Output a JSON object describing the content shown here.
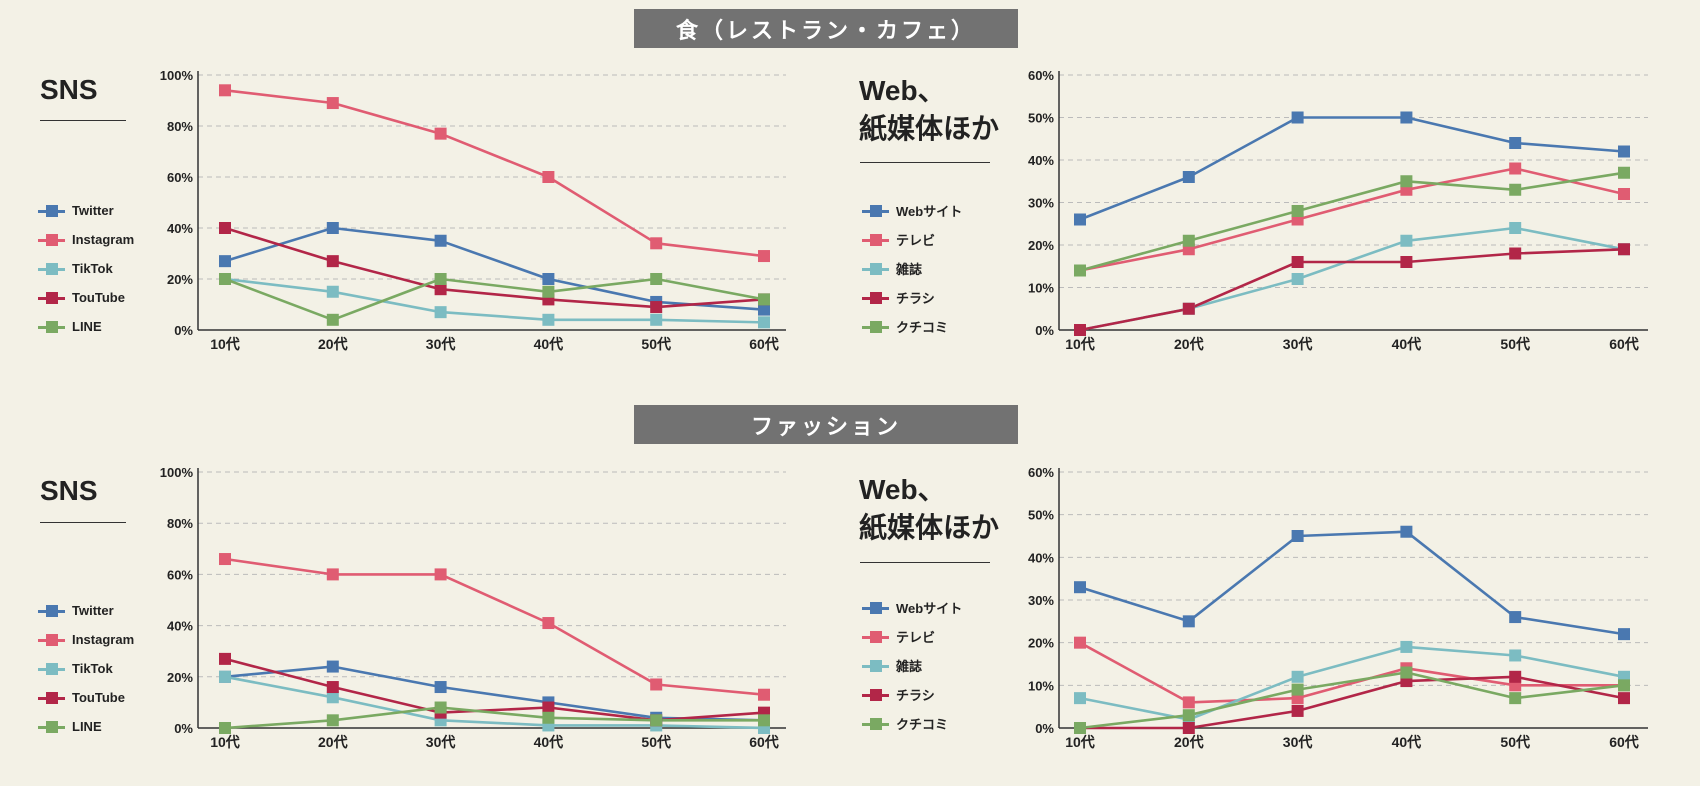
{
  "sections": [
    {
      "title": "食（レストラン・カフェ）"
    },
    {
      "title": "ファッション"
    }
  ],
  "sns_title": "SNS",
  "web_title_line1": "Web、",
  "web_title_line2": "紙媒体ほか",
  "colors": {
    "blue": "#4a78b0",
    "pink": "#e05c72",
    "teal": "#7cbcc2",
    "crimson": "#b22648",
    "green": "#7aa962",
    "grid": "#bbbbbb",
    "axis": "#333333"
  },
  "legend_sns": [
    "Twitter",
    "Instagram",
    "TikTok",
    "TouTube",
    "LINE"
  ],
  "legend_web": [
    "Webサイト",
    "テレビ",
    "雑誌",
    "チラシ",
    "クチコミ"
  ],
  "chart_data": [
    {
      "type": "line",
      "title": "食（レストラン・カフェ） SNS",
      "categories": [
        "10代",
        "20代",
        "30代",
        "40代",
        "50代",
        "60代"
      ],
      "yticks": [
        "0%",
        "20%",
        "40%",
        "60%",
        "80%",
        "100%"
      ],
      "ylim": [
        0,
        100
      ],
      "series": [
        {
          "name": "Twitter",
          "color": "#4a78b0",
          "values": [
            27,
            40,
            35,
            20,
            11,
            8
          ]
        },
        {
          "name": "Instagram",
          "color": "#e05c72",
          "values": [
            94,
            89,
            77,
            60,
            34,
            29
          ]
        },
        {
          "name": "TikTok",
          "color": "#7cbcc2",
          "values": [
            20,
            15,
            7,
            4,
            4,
            3
          ]
        },
        {
          "name": "TouTube",
          "color": "#b22648",
          "values": [
            40,
            27,
            16,
            12,
            9,
            12
          ]
        },
        {
          "name": "LINE",
          "color": "#7aa962",
          "values": [
            20,
            4,
            20,
            15,
            20,
            12
          ]
        }
      ]
    },
    {
      "type": "line",
      "title": "食（レストラン・カフェ） Web、紙媒体ほか",
      "categories": [
        "10代",
        "20代",
        "30代",
        "40代",
        "50代",
        "60代"
      ],
      "yticks": [
        "0%",
        "10%",
        "20%",
        "30%",
        "40%",
        "50%",
        "60%"
      ],
      "ylim": [
        0,
        60
      ],
      "series": [
        {
          "name": "Webサイト",
          "color": "#4a78b0",
          "values": [
            26,
            36,
            50,
            50,
            44,
            42
          ]
        },
        {
          "name": "テレビ",
          "color": "#e05c72",
          "values": [
            14,
            19,
            26,
            33,
            38,
            32
          ]
        },
        {
          "name": "雑誌",
          "color": "#7cbcc2",
          "values": [
            0,
            5,
            12,
            21,
            24,
            19
          ]
        },
        {
          "name": "チラシ",
          "color": "#b22648",
          "values": [
            0,
            5,
            16,
            16,
            18,
            19
          ]
        },
        {
          "name": "クチコミ",
          "color": "#7aa962",
          "values": [
            14,
            21,
            28,
            35,
            33,
            37
          ]
        }
      ]
    },
    {
      "type": "line",
      "title": "ファッション SNS",
      "categories": [
        "10代",
        "20代",
        "30代",
        "40代",
        "50代",
        "60代"
      ],
      "yticks": [
        "0%",
        "20%",
        "40%",
        "60%",
        "80%",
        "100%"
      ],
      "ylim": [
        0,
        100
      ],
      "series": [
        {
          "name": "Twitter",
          "color": "#4a78b0",
          "values": [
            20,
            24,
            16,
            10,
            4,
            3
          ]
        },
        {
          "name": "Instagram",
          "color": "#e05c72",
          "values": [
            66,
            60,
            60,
            41,
            17,
            13
          ]
        },
        {
          "name": "TikTok",
          "color": "#7cbcc2",
          "values": [
            20,
            12,
            3,
            1,
            1,
            0
          ]
        },
        {
          "name": "TouTube",
          "color": "#b22648",
          "values": [
            27,
            16,
            6,
            8,
            3,
            6
          ]
        },
        {
          "name": "LINE",
          "color": "#7aa962",
          "values": [
            0,
            3,
            8,
            4,
            3,
            3
          ]
        }
      ]
    },
    {
      "type": "line",
      "title": "ファッション Web、紙媒体ほか",
      "categories": [
        "10代",
        "20代",
        "30代",
        "40代",
        "50代",
        "60代"
      ],
      "yticks": [
        "0%",
        "10%",
        "20%",
        "30%",
        "40%",
        "50%",
        "60%"
      ],
      "ylim": [
        0,
        60
      ],
      "series": [
        {
          "name": "Webサイト",
          "color": "#4a78b0",
          "values": [
            33,
            25,
            45,
            46,
            26,
            22
          ]
        },
        {
          "name": "テレビ",
          "color": "#e05c72",
          "values": [
            20,
            6,
            7,
            14,
            10,
            10
          ]
        },
        {
          "name": "雑誌",
          "color": "#7cbcc2",
          "values": [
            7,
            2,
            12,
            19,
            17,
            12
          ]
        },
        {
          "name": "チラシ",
          "color": "#b22648",
          "values": [
            0,
            0,
            4,
            11,
            12,
            7
          ]
        },
        {
          "name": "クチコミ",
          "color": "#7aa962",
          "values": [
            0,
            3,
            9,
            13,
            7,
            10
          ]
        }
      ]
    }
  ]
}
